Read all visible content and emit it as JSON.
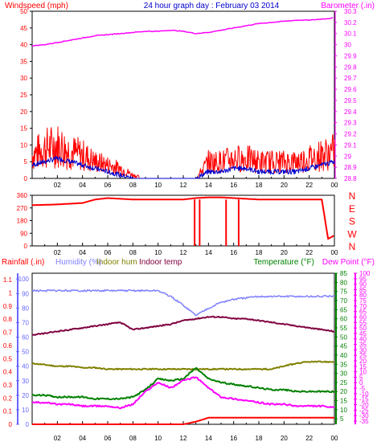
{
  "title": "24 hour graph day : February 03 2014",
  "x_ticks": [
    "02",
    "04",
    "06",
    "08",
    "10",
    "12",
    "14",
    "16",
    "18",
    "20",
    "22",
    "00"
  ],
  "colors": {
    "wind": "#ff0000",
    "gust": "#ff0000",
    "avg": "#0000cc",
    "barometer": "#ff00ff",
    "direction": "#ff0000",
    "rain": "#ff0000",
    "humidity": "#7f7fff",
    "indoor_hum": "#808000",
    "indoor_temp": "#800040",
    "temperature": "#008000",
    "dewpoint": "#ff00ff",
    "frame": "#000000",
    "axis_blue": "#6666ff",
    "axis_green": "#008000",
    "axis_magenta": "#ff00ff"
  },
  "chart_data": [
    {
      "type": "line",
      "panel": "wind-barometer",
      "ylabel_left": "Windspeed (mph)",
      "ylabel_right": "Barometer (.in)",
      "left_ticks": [
        "0",
        "5",
        "10",
        "15",
        "20",
        "25",
        "30",
        "35",
        "40",
        "45",
        "50"
      ],
      "right_ticks": [
        "28.8",
        "28.9",
        "29",
        "29.1",
        "29.2",
        "29.3",
        "29.4",
        "29.5",
        "29.6",
        "29.7",
        "29.8",
        "29.9",
        "30",
        "30.1",
        "30.2",
        "30.3"
      ],
      "ylim_left": [
        0,
        50
      ],
      "ylim_right": [
        28.8,
        30.3
      ],
      "x": [
        0,
        1,
        2,
        3,
        4,
        5,
        6,
        7,
        8,
        9,
        10,
        11,
        12,
        13,
        14,
        15,
        16,
        17,
        18,
        19,
        20,
        21,
        22,
        23,
        24
      ],
      "series": [
        {
          "key": "wind",
          "values": [
            7,
            9,
            10,
            8,
            7,
            5,
            4,
            3,
            1,
            0,
            0,
            0,
            0,
            0,
            5,
            5,
            6,
            6,
            5,
            5,
            5,
            5,
            6,
            7,
            8
          ]
        },
        {
          "key": "avg",
          "values": [
            4,
            5,
            6,
            5,
            4,
            3,
            2,
            1,
            0,
            0,
            0,
            0,
            0,
            0,
            2,
            2,
            3,
            3,
            2,
            2,
            2,
            2,
            3,
            4,
            5
          ]
        },
        {
          "key": "barometer",
          "values": [
            29.99,
            30.0,
            30.02,
            30.04,
            30.06,
            30.08,
            30.09,
            30.1,
            30.11,
            30.12,
            30.12,
            30.13,
            30.12,
            30.1,
            30.11,
            30.13,
            30.15,
            30.17,
            30.19,
            30.2,
            30.21,
            30.22,
            30.22,
            30.23,
            30.24
          ]
        }
      ]
    },
    {
      "type": "line",
      "panel": "wind-direction",
      "left_ticks": [
        "0",
        "90",
        "180",
        "270",
        "360"
      ],
      "right_ticks": [
        "N",
        "W",
        "S",
        "E",
        "N"
      ],
      "ylim": [
        0,
        360
      ],
      "x": [
        0,
        1,
        2,
        3,
        4,
        5,
        6,
        7,
        8,
        9,
        10,
        11,
        12,
        13,
        14,
        15,
        16,
        17,
        18,
        19,
        20,
        21,
        22,
        23,
        23.5,
        24
      ],
      "series": [
        {
          "key": "direction",
          "values": [
            290,
            292,
            295,
            300,
            305,
            330,
            340,
            335,
            330,
            330,
            330,
            330,
            330,
            340,
            345,
            345,
            340,
            335,
            330,
            330,
            330,
            330,
            330,
            330,
            50,
            75
          ]
        }
      ]
    },
    {
      "type": "line",
      "panel": "rain-humidity-temperature",
      "ylabel_left_1": "Rainfall (.in)",
      "ylabel_left_2": "Humidity (%)",
      "legend_indoor_hum": "Indoor hum",
      "legend_indoor_temp": "Indoor temp",
      "ylabel_right_1": "Temperature (°F)",
      "ylabel_right_2": "Dew Point (°F)",
      "rain_ticks": [
        "0",
        "0.1",
        "0.2",
        "0.3",
        "0.4",
        "0.5",
        "0.6",
        "0.7",
        "0.8",
        "0.9",
        "1",
        "1.1"
      ],
      "hum_ticks": [
        "0",
        "10",
        "20",
        "30",
        "40",
        "50",
        "60",
        "70",
        "80",
        "90",
        "100"
      ],
      "temp_ticks": [
        "5",
        "10",
        "15",
        "20",
        "25",
        "30",
        "35",
        "40",
        "45",
        "50",
        "55",
        "60",
        "65",
        "70",
        "75",
        "80",
        "85"
      ],
      "dew_ticks": [
        "-35",
        "-30",
        "-25",
        "-20",
        "-15",
        "-10",
        "-5",
        "0",
        "5",
        "10",
        "15",
        "20",
        "25",
        "30",
        "35",
        "40",
        "45",
        "50",
        "55",
        "60",
        "65",
        "70",
        "75",
        "80",
        "85",
        "90",
        "95",
        "100"
      ],
      "x": [
        0,
        1,
        2,
        3,
        4,
        5,
        6,
        7,
        8,
        9,
        10,
        11,
        12,
        13,
        14,
        15,
        16,
        17,
        18,
        19,
        20,
        21,
        22,
        23,
        24
      ],
      "series": [
        {
          "key": "rain",
          "unit": "in",
          "values": [
            0,
            0,
            0,
            0,
            0,
            0,
            0,
            0,
            0,
            0,
            0,
            0,
            0,
            0.02,
            0.05,
            0.05,
            0.05,
            0.05,
            0.05,
            0.05,
            0.05,
            0.05,
            0.05,
            0.05,
            0.05
          ]
        },
        {
          "key": "humidity",
          "unit": "%",
          "values": [
            92,
            92,
            92,
            92,
            92,
            92,
            92,
            92,
            92,
            92,
            92,
            88,
            82,
            75,
            80,
            84,
            86,
            87,
            88,
            88,
            88,
            88,
            88,
            88,
            88
          ]
        },
        {
          "key": "indoor_hum",
          "unit": "%",
          "values": [
            42,
            41,
            40,
            40,
            39,
            39,
            38,
            38,
            38,
            38,
            38,
            38,
            38,
            38,
            38,
            38,
            38,
            38,
            38,
            38,
            40,
            42,
            43,
            43,
            43
          ]
        },
        {
          "key": "indoor_temp",
          "unit": "°F",
          "values": [
            51,
            52,
            53,
            54,
            55,
            56,
            57,
            58,
            54,
            55,
            56,
            57,
            59,
            60,
            61,
            61,
            60,
            60,
            59,
            58,
            57,
            56,
            55,
            54,
            53
          ]
        },
        {
          "key": "temperature",
          "unit": "°F",
          "values": [
            18,
            18,
            17,
            17,
            17,
            16,
            16,
            16,
            17,
            21,
            27,
            26,
            27,
            33,
            27,
            25,
            24,
            23,
            22,
            21,
            21,
            20,
            20,
            20,
            20
          ]
        },
        {
          "key": "dewpoint",
          "unit": "°F",
          "values": [
            14,
            14,
            13,
            13,
            12,
            12,
            12,
            11,
            13,
            20,
            25,
            22,
            26,
            28,
            22,
            17,
            16,
            15,
            14,
            13,
            13,
            12,
            12,
            12,
            11
          ]
        }
      ]
    }
  ]
}
